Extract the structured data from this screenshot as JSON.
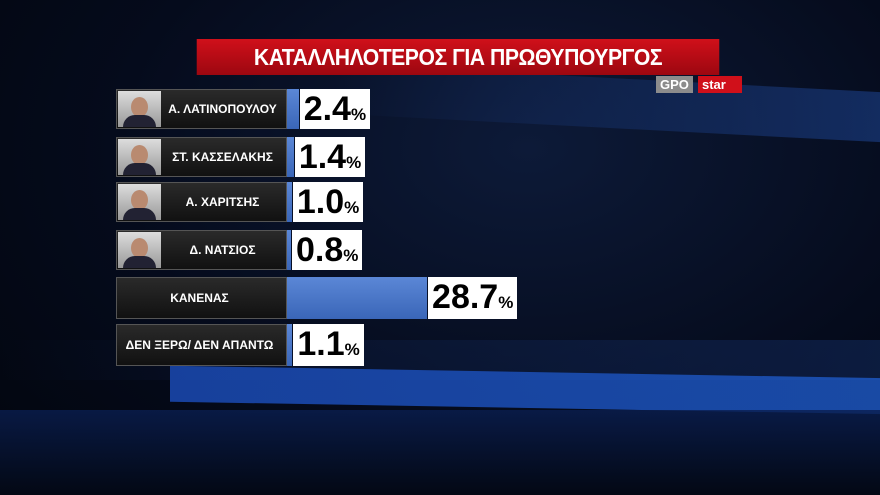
{
  "title": "ΚΑΤΑΛΛΗΛΟΤΕΡΟΣ ΓΙΑ ΠΡΩΘΥΠΟΥΡΓΟΣ",
  "logos": {
    "pollster": "GPO",
    "channel": "star"
  },
  "colors": {
    "bar": "#4a78c8",
    "title": "#c00c15"
  },
  "chart_data": {
    "type": "bar",
    "title": "ΚΑΤΑΛΛΗΛΟΤΕΡΟΣ ΓΙΑ ΠΡΩΘΥΠΟΥΡΓΟΣ",
    "categories": [
      "Α. ΛΑΤΙΝΟΠΟΥΛΟΥ",
      "ΣΤ. ΚΑΣΣΕΛΑΚΗΣ",
      "Α. ΧΑΡΙΤΣΗΣ",
      "Δ. ΝΑΤΣΙΟΣ",
      "ΚΑΝΕΝΑΣ",
      "ΔΕΝ ΞΕΡΩ/ ΔΕΝ ΑΠΑΝΤΩ"
    ],
    "values": [
      2.4,
      1.4,
      1.0,
      0.8,
      28.7,
      1.1
    ],
    "labels": [
      "2.4",
      "1.4",
      "1.0",
      "0.8",
      "28.7",
      "1.1"
    ],
    "unit": "%",
    "orientation": "horizontal",
    "has_photo": [
      true,
      true,
      true,
      true,
      false,
      false
    ]
  }
}
